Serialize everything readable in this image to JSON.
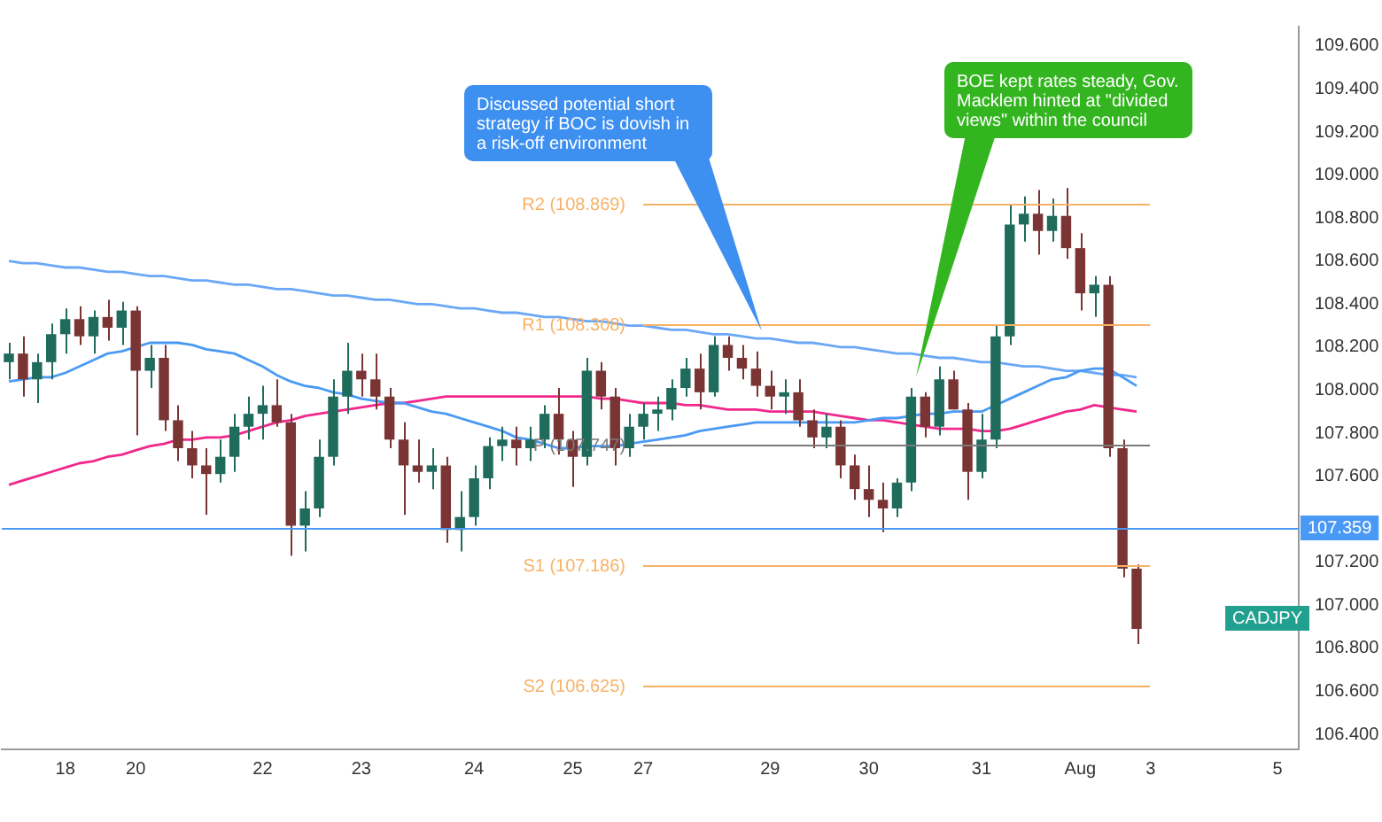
{
  "chart_data": {
    "type": "candlestick",
    "categories": [
      null,
      null,
      null,
      null,
      "18",
      null,
      null,
      null,
      null,
      "20",
      null,
      null,
      null,
      null,
      null,
      null,
      null,
      null,
      "22",
      null,
      null,
      null,
      null,
      null,
      null,
      "23",
      null,
      null,
      null,
      null,
      null,
      null,
      null,
      "24",
      null,
      null,
      null,
      null,
      null,
      null,
      "25",
      null,
      null,
      null,
      null,
      "27",
      null,
      null,
      null,
      null,
      null,
      null,
      null,
      null,
      "29",
      null,
      null,
      null,
      null,
      null,
      null,
      "30",
      null,
      null,
      null,
      null,
      null,
      null,
      null,
      "31",
      null,
      null,
      null,
      null,
      null,
      null,
      "Aug",
      null,
      null,
      null,
      null,
      "3",
      null,
      null,
      null,
      null,
      null,
      null,
      null,
      null,
      "5",
      null
    ],
    "ohlc": [
      [
        108.13,
        108.22,
        108.05,
        108.17
      ],
      [
        108.17,
        108.25,
        107.97,
        108.05
      ],
      [
        108.05,
        108.17,
        107.94,
        108.13
      ],
      [
        108.13,
        108.31,
        108.05,
        108.26
      ],
      [
        108.26,
        108.38,
        108.17,
        108.33
      ],
      [
        108.33,
        108.39,
        108.21,
        108.25
      ],
      [
        108.25,
        108.37,
        108.17,
        108.34
      ],
      [
        108.34,
        108.42,
        108.23,
        108.29
      ],
      [
        108.29,
        108.41,
        108.21,
        108.37
      ],
      [
        108.37,
        108.39,
        107.79,
        108.09
      ],
      [
        108.09,
        108.21,
        108.01,
        108.15
      ],
      [
        108.15,
        108.21,
        107.81,
        107.86
      ],
      [
        107.86,
        107.93,
        107.67,
        107.73
      ],
      [
        107.73,
        107.81,
        107.59,
        107.65
      ],
      [
        107.65,
        107.73,
        107.42,
        107.61
      ],
      [
        107.61,
        107.77,
        107.57,
        107.69
      ],
      [
        107.69,
        107.89,
        107.62,
        107.83
      ],
      [
        107.83,
        107.97,
        107.77,
        107.89
      ],
      [
        107.89,
        108.02,
        107.77,
        107.93
      ],
      [
        107.93,
        108.05,
        107.83,
        107.85
      ],
      [
        107.85,
        107.89,
        107.23,
        107.37
      ],
      [
        107.37,
        107.53,
        107.25,
        107.45
      ],
      [
        107.45,
        107.77,
        107.41,
        107.69
      ],
      [
        107.69,
        108.05,
        107.65,
        107.97
      ],
      [
        107.97,
        108.22,
        107.89,
        108.09
      ],
      [
        108.09,
        108.17,
        107.97,
        108.05
      ],
      [
        108.05,
        108.17,
        107.91,
        107.97
      ],
      [
        107.97,
        108.01,
        107.73,
        107.77
      ],
      [
        107.77,
        107.85,
        107.42,
        107.65
      ],
      [
        107.65,
        107.77,
        107.57,
        107.62
      ],
      [
        107.62,
        107.73,
        107.54,
        107.65
      ],
      [
        107.65,
        107.69,
        107.29,
        107.35
      ],
      [
        107.35,
        107.53,
        107.25,
        107.41
      ],
      [
        107.41,
        107.65,
        107.37,
        107.59
      ],
      [
        107.59,
        107.78,
        107.54,
        107.74
      ],
      [
        107.74,
        107.83,
        107.67,
        107.77
      ],
      [
        107.77,
        107.83,
        107.65,
        107.73
      ],
      [
        107.73,
        107.83,
        107.67,
        107.77
      ],
      [
        107.77,
        107.93,
        107.73,
        107.89
      ],
      [
        107.89,
        108.01,
        107.7,
        107.77
      ],
      [
        107.77,
        107.81,
        107.55,
        107.69
      ],
      [
        107.69,
        108.15,
        107.65,
        108.09
      ],
      [
        108.09,
        108.13,
        107.91,
        107.97
      ],
      [
        107.97,
        108.01,
        107.65,
        107.73
      ],
      [
        107.73,
        107.89,
        107.69,
        107.83
      ],
      [
        107.83,
        107.94,
        107.77,
        107.89
      ],
      [
        107.89,
        107.97,
        107.81,
        107.91
      ],
      [
        107.91,
        108.05,
        107.86,
        108.01
      ],
      [
        108.01,
        108.15,
        107.97,
        108.1
      ],
      [
        108.1,
        108.17,
        107.91,
        107.99
      ],
      [
        107.99,
        108.25,
        107.97,
        108.21
      ],
      [
        108.21,
        108.25,
        108.09,
        108.15
      ],
      [
        108.15,
        108.21,
        108.05,
        108.1
      ],
      [
        108.1,
        108.18,
        107.97,
        108.02
      ],
      [
        108.02,
        108.09,
        107.91,
        107.97
      ],
      [
        107.97,
        108.05,
        107.89,
        107.99
      ],
      [
        107.99,
        108.05,
        107.83,
        107.86
      ],
      [
        107.86,
        107.91,
        107.73,
        107.78
      ],
      [
        107.78,
        107.89,
        107.73,
        107.83
      ],
      [
        107.83,
        107.86,
        107.59,
        107.65
      ],
      [
        107.65,
        107.7,
        107.49,
        107.54
      ],
      [
        107.54,
        107.65,
        107.41,
        107.49
      ],
      [
        107.49,
        107.57,
        107.34,
        107.45
      ],
      [
        107.45,
        107.59,
        107.41,
        107.57
      ],
      [
        107.57,
        108.01,
        107.53,
        107.97
      ],
      [
        107.97,
        107.99,
        107.78,
        107.83
      ],
      [
        107.83,
        108.11,
        107.79,
        108.05
      ],
      [
        108.05,
        108.09,
        107.91,
        107.91
      ],
      [
        107.91,
        107.94,
        107.49,
        107.62
      ],
      [
        107.62,
        107.89,
        107.59,
        107.77
      ],
      [
        107.77,
        108.3,
        107.73,
        108.25
      ],
      [
        108.25,
        108.86,
        108.21,
        108.77
      ],
      [
        108.77,
        108.9,
        108.69,
        108.82
      ],
      [
        108.82,
        108.93,
        108.63,
        108.74
      ],
      [
        108.74,
        108.89,
        108.69,
        108.81
      ],
      [
        108.81,
        108.94,
        108.61,
        108.66
      ],
      [
        108.66,
        108.73,
        108.37,
        108.45
      ],
      [
        108.45,
        108.53,
        108.34,
        108.49
      ],
      [
        108.49,
        108.53,
        107.69,
        107.73
      ],
      [
        107.73,
        107.77,
        107.13,
        107.17
      ],
      [
        107.17,
        107.19,
        106.82,
        106.89
      ],
      null,
      null,
      null,
      null,
      null,
      null,
      null,
      null,
      null,
      null,
      null
    ],
    "colors": [
      "#1f6b5c",
      "#7a3434",
      "#1f6b5c",
      "#1f6b5c",
      "#1f6b5c",
      "#7a3434",
      "#1f6b5c",
      "#7a3434",
      "#1f6b5c",
      "#7a3434",
      "#1f6b5c",
      "#7a3434",
      "#7a3434",
      "#7a3434",
      "#7a3434",
      "#1f6b5c",
      "#1f6b5c",
      "#1f6b5c",
      "#1f6b5c",
      "#7a3434",
      "#7a3434",
      "#1f6b5c",
      "#1f6b5c",
      "#1f6b5c",
      "#1f6b5c",
      "#7a3434",
      "#7a3434",
      "#7a3434",
      "#7a3434",
      "#7a3434",
      "#1f6b5c",
      "#7a3434",
      "#1f6b5c",
      "#1f6b5c",
      "#1f6b5c",
      "#1f6b5c",
      "#7a3434",
      "#1f6b5c",
      "#1f6b5c",
      "#7a3434",
      "#7a3434",
      "#1f6b5c",
      "#7a3434",
      "#7a3434",
      "#1f6b5c",
      "#1f6b5c",
      "#1f6b5c",
      "#1f6b5c",
      "#1f6b5c",
      "#7a3434",
      "#1f6b5c",
      "#7a3434",
      "#7a3434",
      "#7a3434",
      "#7a3434",
      "#1f6b5c",
      "#7a3434",
      "#7a3434",
      "#1f6b5c",
      "#7a3434",
      "#7a3434",
      "#7a3434",
      "#7a3434",
      "#1f6b5c",
      "#1f6b5c",
      "#7a3434",
      "#1f6b5c",
      "#7a3434",
      "#7a3434",
      "#1f6b5c",
      "#1f6b5c",
      "#1f6b5c",
      "#1f6b5c",
      "#7a3434",
      "#1f6b5c",
      "#7a3434",
      "#7a3434",
      "#1f6b5c",
      "#7a3434",
      "#7a3434",
      "#7a3434",
      null,
      null,
      null,
      null,
      null,
      null,
      null,
      null,
      null,
      null,
      null
    ],
    "series": [
      {
        "type": "line",
        "color": "#4a9af5",
        "values": [
          108.04,
          108.05,
          108.06,
          108.06,
          108.08,
          108.11,
          108.14,
          108.17,
          108.18,
          108.2,
          108.22,
          108.22,
          108.22,
          108.21,
          108.19,
          108.18,
          108.17,
          108.14,
          108.11,
          108.07,
          108.04,
          108.02,
          108.01,
          107.99,
          107.98,
          107.96,
          107.95,
          107.94,
          107.94,
          107.92,
          107.9,
          107.89,
          107.87,
          107.85,
          107.83,
          107.81,
          107.78,
          107.77,
          107.75,
          107.73,
          107.73,
          107.74,
          107.74,
          107.74,
          107.75,
          107.76,
          107.77,
          107.78,
          107.79,
          107.81,
          107.82,
          107.83,
          107.84,
          107.85,
          107.85,
          107.85,
          107.85,
          107.85,
          107.85,
          107.85,
          107.85,
          107.86,
          107.87,
          107.87,
          107.88,
          107.89,
          107.89,
          107.9,
          107.9,
          107.9,
          107.93,
          107.96,
          107.99,
          108.02,
          108.05,
          108.06,
          108.09,
          108.1,
          108.1,
          108.06,
          108.02,
          null,
          null,
          null,
          null,
          null,
          null,
          null,
          null,
          null,
          null,
          null
        ]
      },
      {
        "type": "line",
        "color": "#f0288c",
        "values": [
          107.56,
          107.58,
          107.6,
          107.62,
          107.64,
          107.66,
          107.67,
          107.69,
          107.7,
          107.72,
          107.74,
          107.75,
          107.77,
          107.77,
          107.78,
          107.78,
          107.79,
          107.81,
          107.83,
          107.85,
          107.86,
          107.88,
          107.89,
          107.9,
          107.91,
          107.92,
          107.93,
          107.94,
          107.94,
          107.95,
          107.96,
          107.97,
          107.97,
          107.97,
          107.97,
          107.97,
          107.97,
          107.97,
          107.97,
          107.97,
          107.97,
          107.97,
          107.96,
          107.96,
          107.95,
          107.94,
          107.94,
          107.94,
          107.93,
          107.93,
          107.92,
          107.91,
          107.91,
          107.91,
          107.9,
          107.9,
          107.9,
          107.9,
          107.89,
          107.88,
          107.87,
          107.86,
          107.86,
          107.85,
          107.84,
          107.83,
          107.82,
          107.82,
          107.82,
          107.81,
          107.81,
          107.82,
          107.84,
          107.86,
          107.88,
          107.9,
          107.91,
          107.93,
          107.92,
          107.91,
          107.9,
          null,
          null,
          null,
          null,
          null,
          null,
          null,
          null,
          null,
          null,
          null
        ]
      },
      {
        "type": "line",
        "color": "#6aa8f7",
        "values": [
          108.6,
          108.59,
          108.59,
          108.58,
          108.57,
          108.57,
          108.56,
          108.55,
          108.55,
          108.54,
          108.53,
          108.53,
          108.52,
          108.51,
          108.51,
          108.5,
          108.49,
          108.49,
          108.48,
          108.47,
          108.47,
          108.46,
          108.45,
          108.44,
          108.44,
          108.43,
          108.42,
          108.42,
          108.41,
          108.4,
          108.4,
          108.39,
          108.38,
          108.38,
          108.37,
          108.36,
          108.36,
          108.35,
          108.34,
          108.34,
          108.33,
          108.32,
          108.32,
          108.31,
          108.3,
          108.3,
          108.29,
          108.28,
          108.28,
          108.27,
          108.26,
          108.26,
          108.25,
          108.24,
          108.24,
          108.23,
          108.22,
          108.22,
          108.21,
          108.2,
          108.2,
          108.19,
          108.18,
          108.17,
          108.17,
          108.16,
          108.15,
          108.15,
          108.14,
          108.13,
          108.13,
          108.12,
          108.11,
          108.11,
          108.1,
          108.09,
          108.09,
          108.08,
          108.07,
          108.07,
          108.06,
          null,
          null,
          null,
          null,
          null,
          null,
          null,
          null,
          null,
          null,
          null
        ]
      }
    ],
    "ylim": [
      106.33,
      109.69
    ],
    "yticks": [
      {
        "value": 106.4,
        "label": "106.400"
      },
      {
        "value": 106.6,
        "label": "106.600"
      },
      {
        "value": 106.8,
        "label": "106.800"
      },
      {
        "value": 107,
        "label": "107.000"
      },
      {
        "value": 107.2,
        "label": "107.200"
      },
      {
        "value": 107.6,
        "label": "107.600"
      },
      {
        "value": 107.8,
        "label": "107.800"
      },
      {
        "value": 108,
        "label": "108.000"
      },
      {
        "value": 108.2,
        "label": "108.200"
      },
      {
        "value": 108.4,
        "label": "108.400"
      },
      {
        "value": 108.6,
        "label": "108.600"
      },
      {
        "value": 108.8,
        "label": "108.800"
      },
      {
        "value": 109,
        "label": "109.000"
      },
      {
        "value": 109.2,
        "label": "109.200"
      },
      {
        "value": 109.4,
        "label": "109.400"
      },
      {
        "value": 109.6,
        "label": "109.600"
      }
    ],
    "ref_lines": [
      {
        "axis": "y",
        "value": 108.869,
        "label": "R2 (108.869)",
        "color": "#f7b267"
      },
      {
        "axis": "y",
        "value": 108.308,
        "label": "R1 (108.308)",
        "color": "#f7b267"
      },
      {
        "axis": "y",
        "value": 107.747,
        "label": "P (107.747)",
        "color": "#7a7a7a"
      },
      {
        "axis": "y",
        "value": 107.186,
        "label": "S1 (107.186)",
        "color": "#f7b267"
      },
      {
        "axis": "y",
        "value": 106.625,
        "label": "S2 (106.625)",
        "color": "#f7b267"
      },
      {
        "axis": "y",
        "value": 107.359,
        "label": "107.359",
        "color": "#4a9af5"
      }
    ],
    "annotations": [
      "Discussed potential short strategy if BOC is dovish in a risk-off environment",
      "BOE kept rates steady, Gov. Macklem hinted at \"divided views\" within the council",
      "CADJPY"
    ],
    "grid": false
  }
}
